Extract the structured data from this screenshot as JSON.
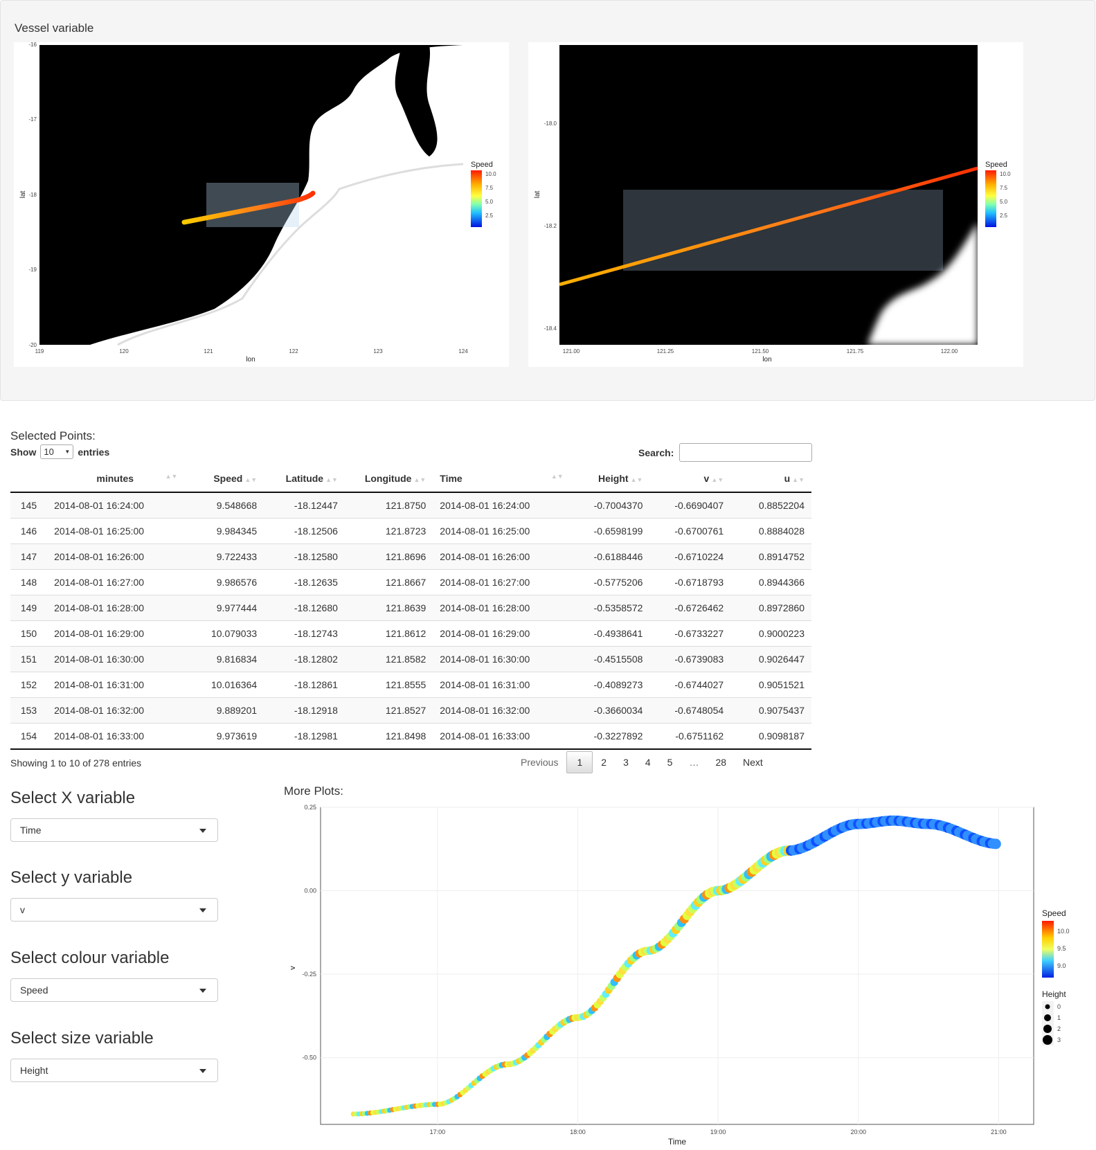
{
  "vessel_panel": {
    "title": "Vessel variable"
  },
  "map1": {
    "xticks": [
      "119",
      "120",
      "121",
      "122",
      "123",
      "124"
    ],
    "yticks": [
      "-16",
      "-17",
      "-18",
      "-19",
      "-20"
    ],
    "xlabel": "lon",
    "ylabel": "lat",
    "legend": {
      "title": "Speed",
      "ticks": [
        "10.0",
        "7.5",
        "5.0",
        "2.5"
      ]
    }
  },
  "map2": {
    "xticks": [
      "121.00",
      "121.25",
      "121.50",
      "121.75",
      "122.00"
    ],
    "yticks": [
      "-18.0",
      "-18.2",
      "-18.4"
    ],
    "xlabel": "lon",
    "ylabel": "lat",
    "legend": {
      "title": "Speed",
      "ticks": [
        "10.0",
        "7.5",
        "5.0",
        "2.5"
      ]
    }
  },
  "table": {
    "label": "Selected Points:",
    "show_label": "Show",
    "entries_value": "10",
    "entries_label": "entries",
    "search_label": "Search:",
    "columns": [
      "",
      "minutes",
      "Speed",
      "Latitude",
      "Longitude",
      "Time",
      "Height",
      "v",
      "u"
    ],
    "rows": [
      [
        "145",
        "2014-08-01 16:24:00",
        "9.548668",
        "-18.12447",
        "121.8750",
        "2014-08-01 16:24:00",
        "-0.7004370",
        "-0.6690407",
        "0.8852204"
      ],
      [
        "146",
        "2014-08-01 16:25:00",
        "9.984345",
        "-18.12506",
        "121.8723",
        "2014-08-01 16:25:00",
        "-0.6598199",
        "-0.6700761",
        "0.8884028"
      ],
      [
        "147",
        "2014-08-01 16:26:00",
        "9.722433",
        "-18.12580",
        "121.8696",
        "2014-08-01 16:26:00",
        "-0.6188446",
        "-0.6710224",
        "0.8914752"
      ],
      [
        "148",
        "2014-08-01 16:27:00",
        "9.986576",
        "-18.12635",
        "121.8667",
        "2014-08-01 16:27:00",
        "-0.5775206",
        "-0.6718793",
        "0.8944366"
      ],
      [
        "149",
        "2014-08-01 16:28:00",
        "9.977444",
        "-18.12680",
        "121.8639",
        "2014-08-01 16:28:00",
        "-0.5358572",
        "-0.6726462",
        "0.8972860"
      ],
      [
        "150",
        "2014-08-01 16:29:00",
        "10.079033",
        "-18.12743",
        "121.8612",
        "2014-08-01 16:29:00",
        "-0.4938641",
        "-0.6733227",
        "0.9000223"
      ],
      [
        "151",
        "2014-08-01 16:30:00",
        "9.816834",
        "-18.12802",
        "121.8582",
        "2014-08-01 16:30:00",
        "-0.4515508",
        "-0.6739083",
        "0.9026447"
      ],
      [
        "152",
        "2014-08-01 16:31:00",
        "10.016364",
        "-18.12861",
        "121.8555",
        "2014-08-01 16:31:00",
        "-0.4089273",
        "-0.6744027",
        "0.9051521"
      ],
      [
        "153",
        "2014-08-01 16:32:00",
        "9.889201",
        "-18.12918",
        "121.8527",
        "2014-08-01 16:32:00",
        "-0.3660034",
        "-0.6748054",
        "0.9075437"
      ],
      [
        "154",
        "2014-08-01 16:33:00",
        "9.973619",
        "-18.12981",
        "121.8498",
        "2014-08-01 16:33:00",
        "-0.3227892",
        "-0.6751162",
        "0.9098187"
      ]
    ],
    "info": "Showing 1 to 10 of 278 entries",
    "pager": {
      "previous": "Previous",
      "pages": [
        "1",
        "2",
        "3",
        "4",
        "5",
        "…",
        "28"
      ],
      "next": "Next"
    }
  },
  "controls": {
    "x": {
      "label": "Select X variable",
      "value": "Time"
    },
    "y": {
      "label": "Select y variable",
      "value": "v"
    },
    "colour": {
      "label": "Select colour variable",
      "value": "Speed"
    },
    "size": {
      "label": "Select size variable",
      "value": "Height"
    }
  },
  "more_plots": {
    "label": "More Plots:",
    "legend_speed": {
      "title": "Speed",
      "ticks": [
        "10.0",
        "9.5",
        "9.0"
      ]
    },
    "legend_height": {
      "title": "Height",
      "ticks": [
        "0",
        "1",
        "2",
        "3"
      ]
    }
  },
  "chart_data": {
    "type": "scatter",
    "xlabel": "Time",
    "ylabel": "v",
    "x_ticks": [
      "17:00",
      "18:00",
      "19:00",
      "20:00",
      "21:00"
    ],
    "y_ticks": [
      "0.25",
      "0.00",
      "-0.25",
      "-0.50"
    ],
    "ylim": [
      -0.7,
      0.25
    ],
    "x_range": [
      "16:10",
      "21:15"
    ],
    "x": [
      "16:24",
      "17:00",
      "17:30",
      "18:00",
      "18:30",
      "19:00",
      "19:30",
      "20:00",
      "20:15",
      "20:30",
      "21:00"
    ],
    "y": [
      -0.669,
      -0.64,
      -0.52,
      -0.38,
      -0.18,
      0.0,
      0.12,
      0.2,
      0.21,
      0.2,
      0.14
    ],
    "colour": "Speed",
    "size": "Height"
  }
}
